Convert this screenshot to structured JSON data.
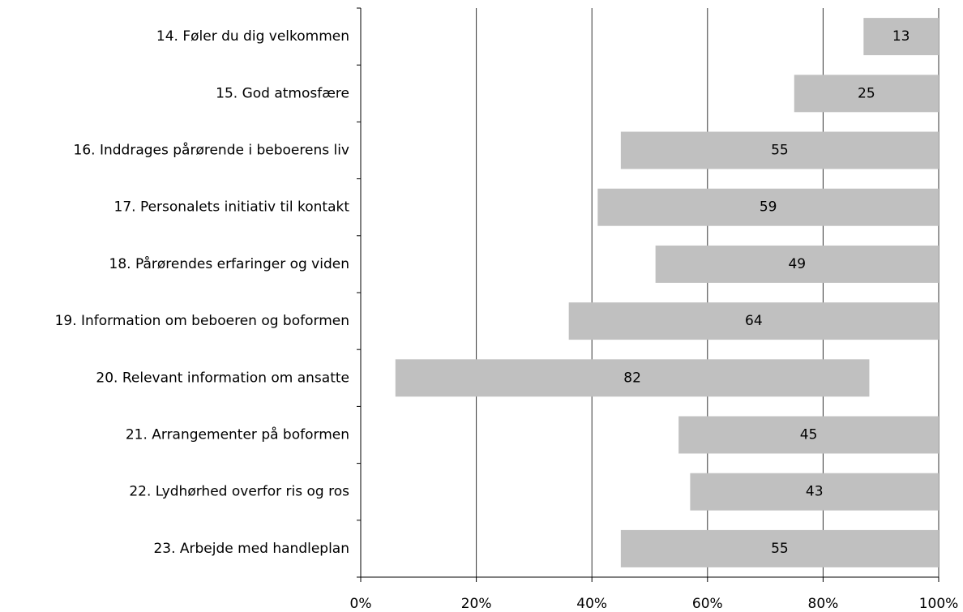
{
  "chart_data": {
    "type": "bar",
    "orientation": "horizontal",
    "stacked": true,
    "categories": [
      "14. Føler du dig velkommen",
      "15. God atmosfære",
      "16. Inddrages pårørende i beboerens liv",
      "17. Personalets initiativ til kontakt",
      "18. Pårørendes erfaringer og viden",
      "19. Information om beboeren og boformen",
      "20. Relevant information om ansatte",
      "21. Arrangementer på boformen",
      "22. Lydhørhed overfor ris og ros",
      "23. Arbejde med handleplan"
    ],
    "series": [
      {
        "color": "none",
        "values": [
          87,
          75,
          45,
          41,
          51,
          36,
          6,
          55,
          57,
          45
        ]
      },
      {
        "color": "#c0c0c0",
        "data_labels": true,
        "values": [
          13,
          25,
          55,
          59,
          49,
          64,
          82,
          45,
          43,
          55
        ]
      }
    ],
    "xlim": [
      0,
      100
    ],
    "xticks": [
      {
        "value": 0,
        "label": "0%"
      },
      {
        "value": 20,
        "label": "20%"
      },
      {
        "value": 40,
        "label": "40%"
      },
      {
        "value": 60,
        "label": "60%"
      },
      {
        "value": 80,
        "label": "80%"
      },
      {
        "value": 100,
        "label": "100%"
      }
    ],
    "grid": true
  }
}
